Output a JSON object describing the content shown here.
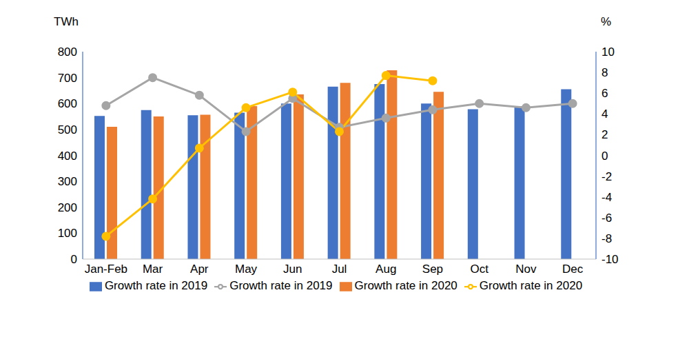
{
  "chart_data": {
    "type": "bar",
    "ylabel": "TWh",
    "y2label": "%",
    "categories": [
      "Jan-Feb",
      "Mar",
      "Apr",
      "May",
      "Jun",
      "Jul",
      "Aug",
      "Sep",
      "Oct",
      "Nov",
      "Dec"
    ],
    "series": [
      {
        "name": "Growth rate in 2019",
        "type": "bar",
        "color": "#4472c4",
        "values": [
          552,
          575,
          555,
          565,
          600,
          665,
          675,
          600,
          578,
          590,
          655
        ]
      },
      {
        "name": "Growth rate in 2020",
        "type": "bar",
        "color": "#ed7d31",
        "values": [
          510,
          550,
          557,
          590,
          635,
          680,
          728,
          645,
          null,
          null,
          null
        ]
      },
      {
        "name": "Growth rate in 2019",
        "type": "line",
        "axis": "y2",
        "color": "#a5a5a5",
        "marker": "circle",
        "line_style": "solid",
        "values": [
          4.8,
          7.5,
          5.8,
          2.3,
          5.5,
          2.7,
          3.6,
          4.4,
          5.0,
          4.6,
          5.0
        ]
      },
      {
        "name": "Growth rate in 2020",
        "type": "line",
        "axis": "y2",
        "color": "#ffc000",
        "marker": "circle",
        "line_style": "solid",
        "values": [
          -7.8,
          -4.2,
          0.7,
          4.6,
          6.1,
          2.3,
          7.7,
          7.2,
          null,
          null,
          null
        ]
      }
    ],
    "ylim": [
      0,
      800
    ],
    "yticks": [
      0,
      100,
      200,
      300,
      400,
      500,
      600,
      700,
      800
    ],
    "y2lim": [
      -10,
      10
    ],
    "y2ticks": [
      -10,
      -8,
      -6,
      -4,
      -2,
      0,
      2,
      4,
      6,
      8,
      10
    ],
    "grid": false,
    "legend": "bottom"
  }
}
